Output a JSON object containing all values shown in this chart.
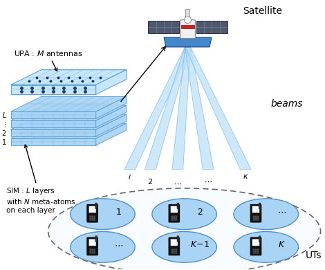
{
  "bg_color": "#ffffff",
  "upa_label": "UPA : $M$ antennas",
  "sim_label": "SIM : $L$ layers\nwith $N$ meta-atoms\non each layer",
  "satellite_label": "Satellite",
  "beams_label": "beams",
  "uts_label": "UTs",
  "layer_labels_left": [
    "$1$",
    "$2$",
    "$\\vdots$",
    "$L$"
  ],
  "light_blue": "#a8d4f5",
  "light_blue2": "#c5e5fa",
  "grid_color": "#5a9fd4",
  "grid_color2": "#80b8e0",
  "beam_color": "#b8dff8",
  "beam_edge": "#70b0e0",
  "ut_fill": "#aad4f5",
  "ut_edge": "#5090c0"
}
